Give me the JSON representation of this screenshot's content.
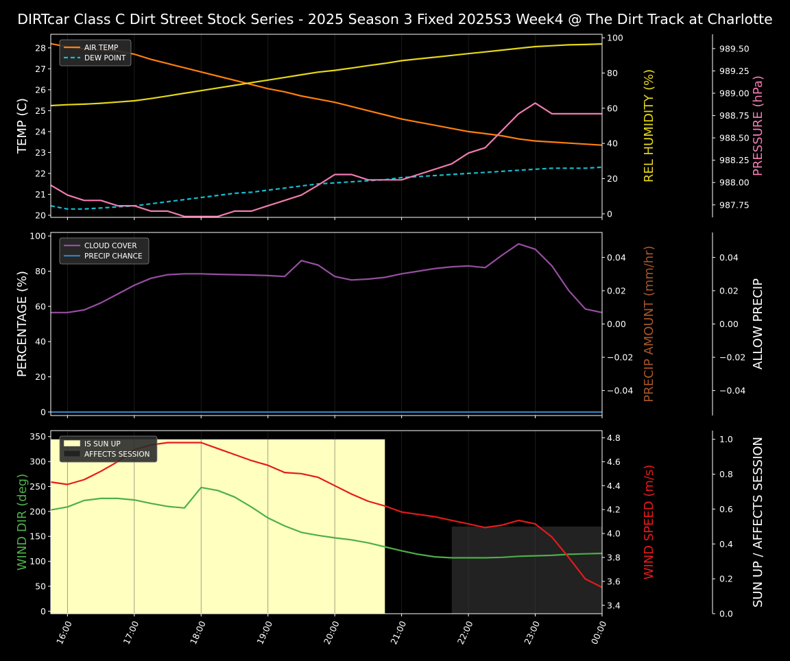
{
  "title": "DIRTcar Class C Dirt Street Stock Series - 2025 Season 3 Fixed 2025S3 Week4 @ The Dirt Track at Charlotte",
  "x_ticks": [
    "16:00",
    "17:00",
    "18:00",
    "19:00",
    "20:00",
    "21:00",
    "22:00",
    "23:00",
    "00:00"
  ],
  "colors": {
    "air_temp": "#ff7f0e",
    "dew_point": "#17becf",
    "humidity": "#e5d81a",
    "pressure": "#f17cb0",
    "cloud": "#984ea3",
    "precip": "#377eb8",
    "wind_dir": "#4daf4a",
    "wind_speed": "#e41a1c",
    "sun": "#ffffc0",
    "affects": "#222222",
    "precip_amount_label": "#a65628"
  },
  "chart_data": [
    {
      "type": "line",
      "panel": "weather",
      "x": [
        "15:45",
        "16:00",
        "16:15",
        "16:30",
        "16:45",
        "17:00",
        "17:15",
        "17:30",
        "17:45",
        "18:00",
        "18:15",
        "18:30",
        "18:45",
        "19:00",
        "19:15",
        "19:30",
        "19:45",
        "20:00",
        "20:15",
        "20:30",
        "20:45",
        "21:00",
        "21:15",
        "21:30",
        "21:45",
        "22:00",
        "22:15",
        "22:30",
        "22:45",
        "23:00",
        "23:15",
        "23:30",
        "23:45",
        "00:00"
      ],
      "series": [
        {
          "name": "AIR TEMP",
          "axis": "left",
          "values": [
            28.2,
            28.05,
            27.95,
            27.9,
            27.85,
            27.7,
            27.45,
            27.25,
            27.05,
            26.85,
            26.65,
            26.45,
            26.25,
            26.05,
            25.9,
            25.7,
            25.55,
            25.4,
            25.2,
            25.0,
            24.8,
            24.6,
            24.45,
            24.3,
            24.15,
            24.0,
            23.9,
            23.8,
            23.65,
            23.55,
            23.5,
            23.45,
            23.4,
            23.35
          ]
        },
        {
          "name": "DEW POINT",
          "axis": "left",
          "values": [
            20.45,
            20.3,
            20.3,
            20.35,
            20.4,
            20.45,
            20.55,
            20.65,
            20.75,
            20.85,
            20.95,
            21.05,
            21.1,
            21.2,
            21.3,
            21.4,
            21.5,
            21.55,
            21.6,
            21.65,
            21.7,
            21.8,
            21.85,
            21.9,
            21.95,
            22.0,
            22.05,
            22.1,
            22.15,
            22.2,
            22.25,
            22.25,
            22.25,
            22.3
          ]
        },
        {
          "axis": "humidity",
          "values": [
            61.5,
            62,
            62.3,
            62.8,
            63.5,
            64.2,
            65.5,
            67,
            68.5,
            70,
            71.5,
            73,
            74.5,
            76,
            77.5,
            79,
            80.5,
            81.5,
            82.8,
            84.2,
            85.5,
            87,
            88,
            89,
            90,
            91,
            92,
            93,
            94,
            95,
            95.5,
            96,
            96.2,
            96.5
          ]
        },
        {
          "axis": "pressure",
          "values": [
            987.97,
            987.86,
            987.8,
            987.8,
            987.74,
            987.74,
            987.68,
            987.68,
            987.62,
            987.62,
            987.62,
            987.68,
            987.68,
            987.74,
            987.8,
            987.86,
            987.97,
            988.09,
            988.09,
            988.03,
            988.03,
            988.03,
            988.09,
            988.15,
            988.21,
            988.33,
            988.39,
            988.58,
            988.77,
            988.89,
            988.77,
            988.77,
            988.77,
            988.77
          ]
        }
      ],
      "ylabel": "TEMP (C)",
      "ylim": [
        19.9,
        28.65
      ],
      "y_ticks": [
        20,
        21,
        22,
        23,
        24,
        25,
        26,
        27,
        28
      ],
      "y2label": "REL HUMIDITY (%)",
      "y2lim": [
        -2,
        102
      ],
      "y2_ticks": [
        0,
        20,
        40,
        60,
        80,
        100
      ],
      "y3label": "PRESSURE (hPa)",
      "y3lim": [
        987.61,
        989.66
      ],
      "y3_ticks": [
        "987.75",
        "988.00",
        "988.25",
        "988.50",
        "988.75",
        "989.00",
        "989.25",
        "989.50"
      ],
      "legend": "top-left"
    },
    {
      "type": "line",
      "panel": "clouds",
      "x": [
        "15:45",
        "16:00",
        "16:15",
        "16:30",
        "16:45",
        "17:00",
        "17:15",
        "17:30",
        "17:45",
        "18:00",
        "18:15",
        "18:30",
        "18:45",
        "19:00",
        "19:15",
        "19:30",
        "19:45",
        "20:00",
        "20:15",
        "20:30",
        "20:45",
        "21:00",
        "21:15",
        "21:30",
        "21:45",
        "22:00",
        "22:15",
        "22:30",
        "22:45",
        "23:00",
        "23:15",
        "23:30",
        "23:45",
        "00:00"
      ],
      "series": [
        {
          "name": "CLOUD COVER",
          "axis": "left",
          "values": [
            56.5,
            56.5,
            58,
            62,
            67,
            72,
            76,
            78,
            78.5,
            78.5,
            78.2,
            78,
            77.8,
            77.5,
            77,
            86,
            83.5,
            77,
            75,
            75.5,
            76.5,
            78.5,
            80,
            81.5,
            82.5,
            83,
            82,
            89,
            95.5,
            92.5,
            83,
            69,
            58.5,
            56.5
          ]
        },
        {
          "name": "PRECIP CHANCE",
          "axis": "left",
          "values": [
            0,
            0,
            0,
            0,
            0,
            0,
            0,
            0,
            0,
            0,
            0,
            0,
            0,
            0,
            0,
            0,
            0,
            0,
            0,
            0,
            0,
            0,
            0,
            0,
            0,
            0,
            0,
            0,
            0,
            0,
            0,
            0,
            0,
            0
          ]
        }
      ],
      "ylabel": "PERCENTAGE (%)",
      "ylim": [
        -2,
        102
      ],
      "y_ticks": [
        0,
        20,
        40,
        60,
        80,
        100
      ],
      "y2label": "PRECIP AMOUNT (mm/hr)",
      "y2lim": [
        -0.055,
        0.055
      ],
      "y2_ticks": [
        "−0.04",
        "−0.02",
        "0.00",
        "0.02",
        "0.04"
      ],
      "y3label": "ALLOW PRECIP",
      "y3lim": [
        -0.055,
        0.055
      ],
      "y3_ticks": [
        "−0.04",
        "−0.02",
        "0.00",
        "0.02",
        "0.04"
      ],
      "legend": "top-left"
    },
    {
      "type": "line",
      "panel": "wind",
      "x": [
        "15:45",
        "16:00",
        "16:15",
        "16:30",
        "16:45",
        "17:00",
        "17:15",
        "17:30",
        "17:45",
        "18:00",
        "18:15",
        "18:30",
        "18:45",
        "19:00",
        "19:15",
        "19:30",
        "19:45",
        "20:00",
        "20:15",
        "20:30",
        "20:45",
        "21:00",
        "21:15",
        "21:30",
        "21:45",
        "22:00",
        "22:15",
        "22:30",
        "22:45",
        "23:00",
        "23:15",
        "23:30",
        "23:45",
        "00:00"
      ],
      "series": [
        {
          "axis": "left",
          "values": [
            203,
            209,
            222,
            226,
            226,
            223,
            216,
            210,
            207,
            248,
            242,
            229,
            209,
            187,
            171,
            158,
            152,
            147,
            143,
            137,
            129,
            121,
            114,
            109,
            107,
            107,
            107,
            108,
            110,
            111,
            112,
            114,
            115,
            116
          ]
        },
        {
          "axis": "speed",
          "values": [
            4.43,
            4.41,
            4.45,
            4.52,
            4.6,
            4.7,
            4.74,
            4.76,
            4.76,
            4.76,
            4.71,
            4.66,
            4.61,
            4.57,
            4.51,
            4.5,
            4.47,
            4.4,
            4.33,
            4.27,
            4.23,
            4.18,
            4.16,
            4.14,
            4.11,
            4.08,
            4.05,
            4.07,
            4.11,
            4.08,
            3.97,
            3.8,
            3.62,
            3.55
          ]
        }
      ],
      "bands": [
        {
          "name": "IS SUN UP",
          "from": "15:45",
          "to": "20:45",
          "value": 1.0
        },
        {
          "name": "AFFECTS SESSION",
          "from": "21:45",
          "to": "00:00",
          "value": 0.5
        }
      ],
      "ylabel": "WIND DIR (deg)",
      "ylim": [
        -5,
        362
      ],
      "y_ticks": [
        0,
        50,
        100,
        150,
        200,
        250,
        300,
        350
      ],
      "y2label": "WIND SPEED (m/s)",
      "y2lim": [
        3.33,
        4.86
      ],
      "y2_ticks": [
        "3.4",
        "3.6",
        "3.8",
        "4.0",
        "4.2",
        "4.4",
        "4.6",
        "4.8"
      ],
      "y3label": "SUN UP / AFFECTS SESSION",
      "y3lim": [
        0,
        1.05
      ],
      "y3_ticks": [
        "0.0",
        "0.2",
        "0.4",
        "0.6",
        "0.8",
        "1.0"
      ],
      "legend": "top-left"
    }
  ]
}
